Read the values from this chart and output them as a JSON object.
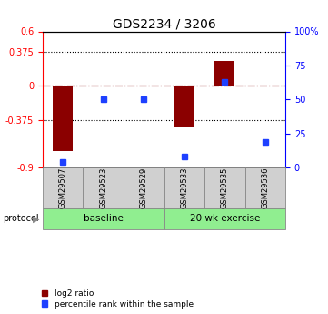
{
  "title": "GDS2234 / 3206",
  "samples": [
    "GSM29507",
    "GSM29523",
    "GSM29529",
    "GSM29533",
    "GSM29535",
    "GSM29536"
  ],
  "log2_ratio": [
    -0.72,
    0.0,
    0.0,
    -0.46,
    0.27,
    0.0
  ],
  "percentile_rank": [
    4,
    50,
    50,
    8,
    63,
    19
  ],
  "ylim_left": [
    -0.9,
    0.6
  ],
  "ylim_right": [
    0,
    100
  ],
  "yticks_left": [
    -0.9,
    -0.375,
    0,
    0.375,
    0.6
  ],
  "ytick_labels_left": [
    "-0.9",
    "-0.375",
    "0",
    "0.375",
    "0.6"
  ],
  "yticks_right": [
    0,
    25,
    50,
    75,
    100
  ],
  "ytick_labels_right": [
    "0",
    "25",
    "50",
    "75",
    "100%"
  ],
  "hlines": [
    -0.375,
    0.375
  ],
  "bar_color": "#8B0000",
  "dot_color": "#1E40FF",
  "bar_width": 0.5,
  "background_color": "#ffffff",
  "legend_labels": [
    "log2 ratio",
    "percentile rank within the sample"
  ],
  "legend_colors": [
    "#8B0000",
    "#1E40FF"
  ],
  "green_color": "#90EE90"
}
